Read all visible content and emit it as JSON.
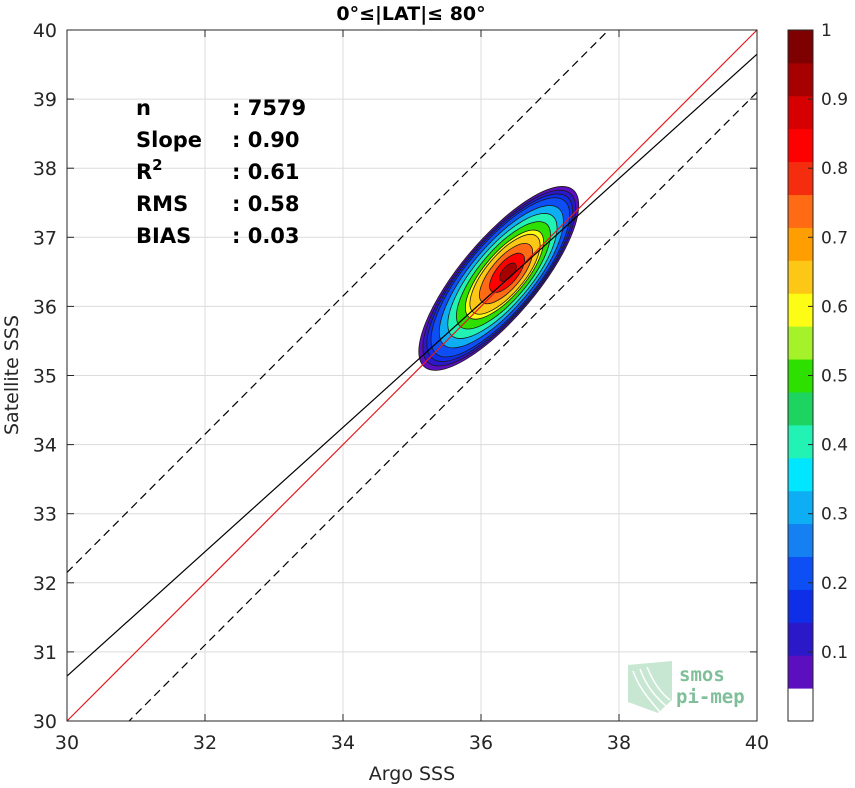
{
  "chart_data": {
    "type": "contour-density",
    "title": "0°≤|LAT|≤ 80°",
    "xlabel": "Argo SSS",
    "ylabel": "Satellite SSS",
    "xlim": [
      30,
      40
    ],
    "ylim": [
      30,
      40
    ],
    "x_ticks": [
      "30",
      "32",
      "34",
      "36",
      "38",
      "40"
    ],
    "y_ticks": [
      "30",
      "31",
      "32",
      "33",
      "34",
      "35",
      "36",
      "37",
      "38",
      "39",
      "40"
    ],
    "grid": true,
    "stats": [
      {
        "label": "n",
        "value": ": 7579"
      },
      {
        "label": "Slope",
        "value": ": 0.90"
      },
      {
        "label": "R",
        "sup": "2",
        "value": ": 0.61"
      },
      {
        "label": "RMS",
        "value": ": 0.58"
      },
      {
        "label": "BIAS",
        "value": ": 0.03"
      }
    ],
    "lines": [
      {
        "id": "one-to-one",
        "color": "#e41a1c",
        "style": "solid",
        "slope": 1.0,
        "intercept": 0.0
      },
      {
        "id": "regression",
        "color": "#000000",
        "style": "solid",
        "slope": 0.9,
        "intercept": 3.65
      },
      {
        "id": "upper-bound",
        "color": "#000000",
        "style": "dashed",
        "slope": 1.0,
        "intercept": 2.15
      },
      {
        "id": "lower-bound",
        "color": "#000000",
        "style": "dashed",
        "slope": 1.0,
        "intercept": -0.9
      }
    ],
    "density_peak": {
      "x": 36.4,
      "y": 36.5
    },
    "contour_levels": [
      0.05,
      0.1,
      0.15,
      0.2,
      0.3,
      0.4,
      0.5,
      0.6,
      0.65,
      0.75,
      0.85,
      0.95
    ],
    "colorbar": {
      "ticks": [
        "0.1",
        "0.2",
        "0.3",
        "0.4",
        "0.5",
        "0.6",
        "0.7",
        "0.8",
        "0.9",
        "1"
      ],
      "tick_values": [
        0.1,
        0.2,
        0.3,
        0.4,
        0.5,
        0.6,
        0.7,
        0.8,
        0.9,
        1.0
      ],
      "range": [
        0.0,
        1.0
      ],
      "colors": [
        "#ffffff",
        "#5b0fbf",
        "#2b18c9",
        "#0f2ee8",
        "#0d4ff5",
        "#1480f2",
        "#0eaef5",
        "#00e6ff",
        "#22f2b4",
        "#1ed460",
        "#2de000",
        "#a6f22a",
        "#fcfc14",
        "#fcc815",
        "#ff9e00",
        "#ff6a14",
        "#f52d0f",
        "#ff0000",
        "#d70000",
        "#a60000",
        "#7f0000"
      ]
    },
    "logo": {
      "line1": "smos",
      "line2": "pi-mep"
    }
  }
}
